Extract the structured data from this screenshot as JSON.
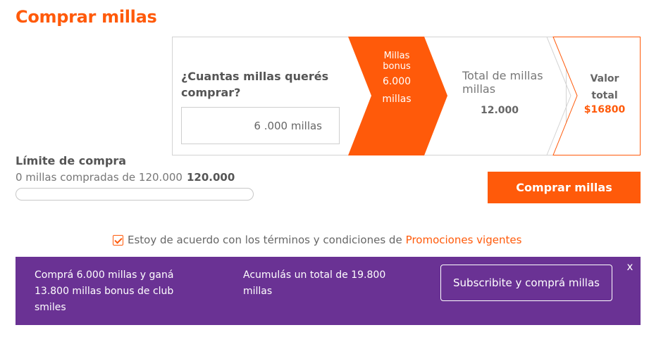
{
  "page": {
    "title": "Comprar millas"
  },
  "calculator": {
    "question": "¿Cuantas millas querés comprar?",
    "input_value": "6 .000 millas",
    "bonus": {
      "label": "Millas bonus",
      "value": "6.000",
      "unit": "millas"
    },
    "total": {
      "label": "Total de millas millas",
      "value": "12.000"
    },
    "price": {
      "label": "Valor total",
      "value": "$16800"
    }
  },
  "limit": {
    "title": "Límite de compra",
    "description": "0 millas compradas de 120.000",
    "max": "120.000",
    "progress_fraction": 0
  },
  "actions": {
    "buy_label": "Comprar millas"
  },
  "terms": {
    "checked": true,
    "text": "Estoy de acuerdo con los términos y condiciones de",
    "link": "Promociones vigentes"
  },
  "promo": {
    "text_left": "Comprá 6.000 millas y ganá 13.800 millas bonus de club smiles",
    "text_mid": "Acumulás un total de 19.800 millas",
    "subscribe_label": "Subscribite y comprá millas",
    "close_symbol": "x"
  },
  "colors": {
    "accent": "#ff5a0a",
    "banner": "#6a3294"
  }
}
